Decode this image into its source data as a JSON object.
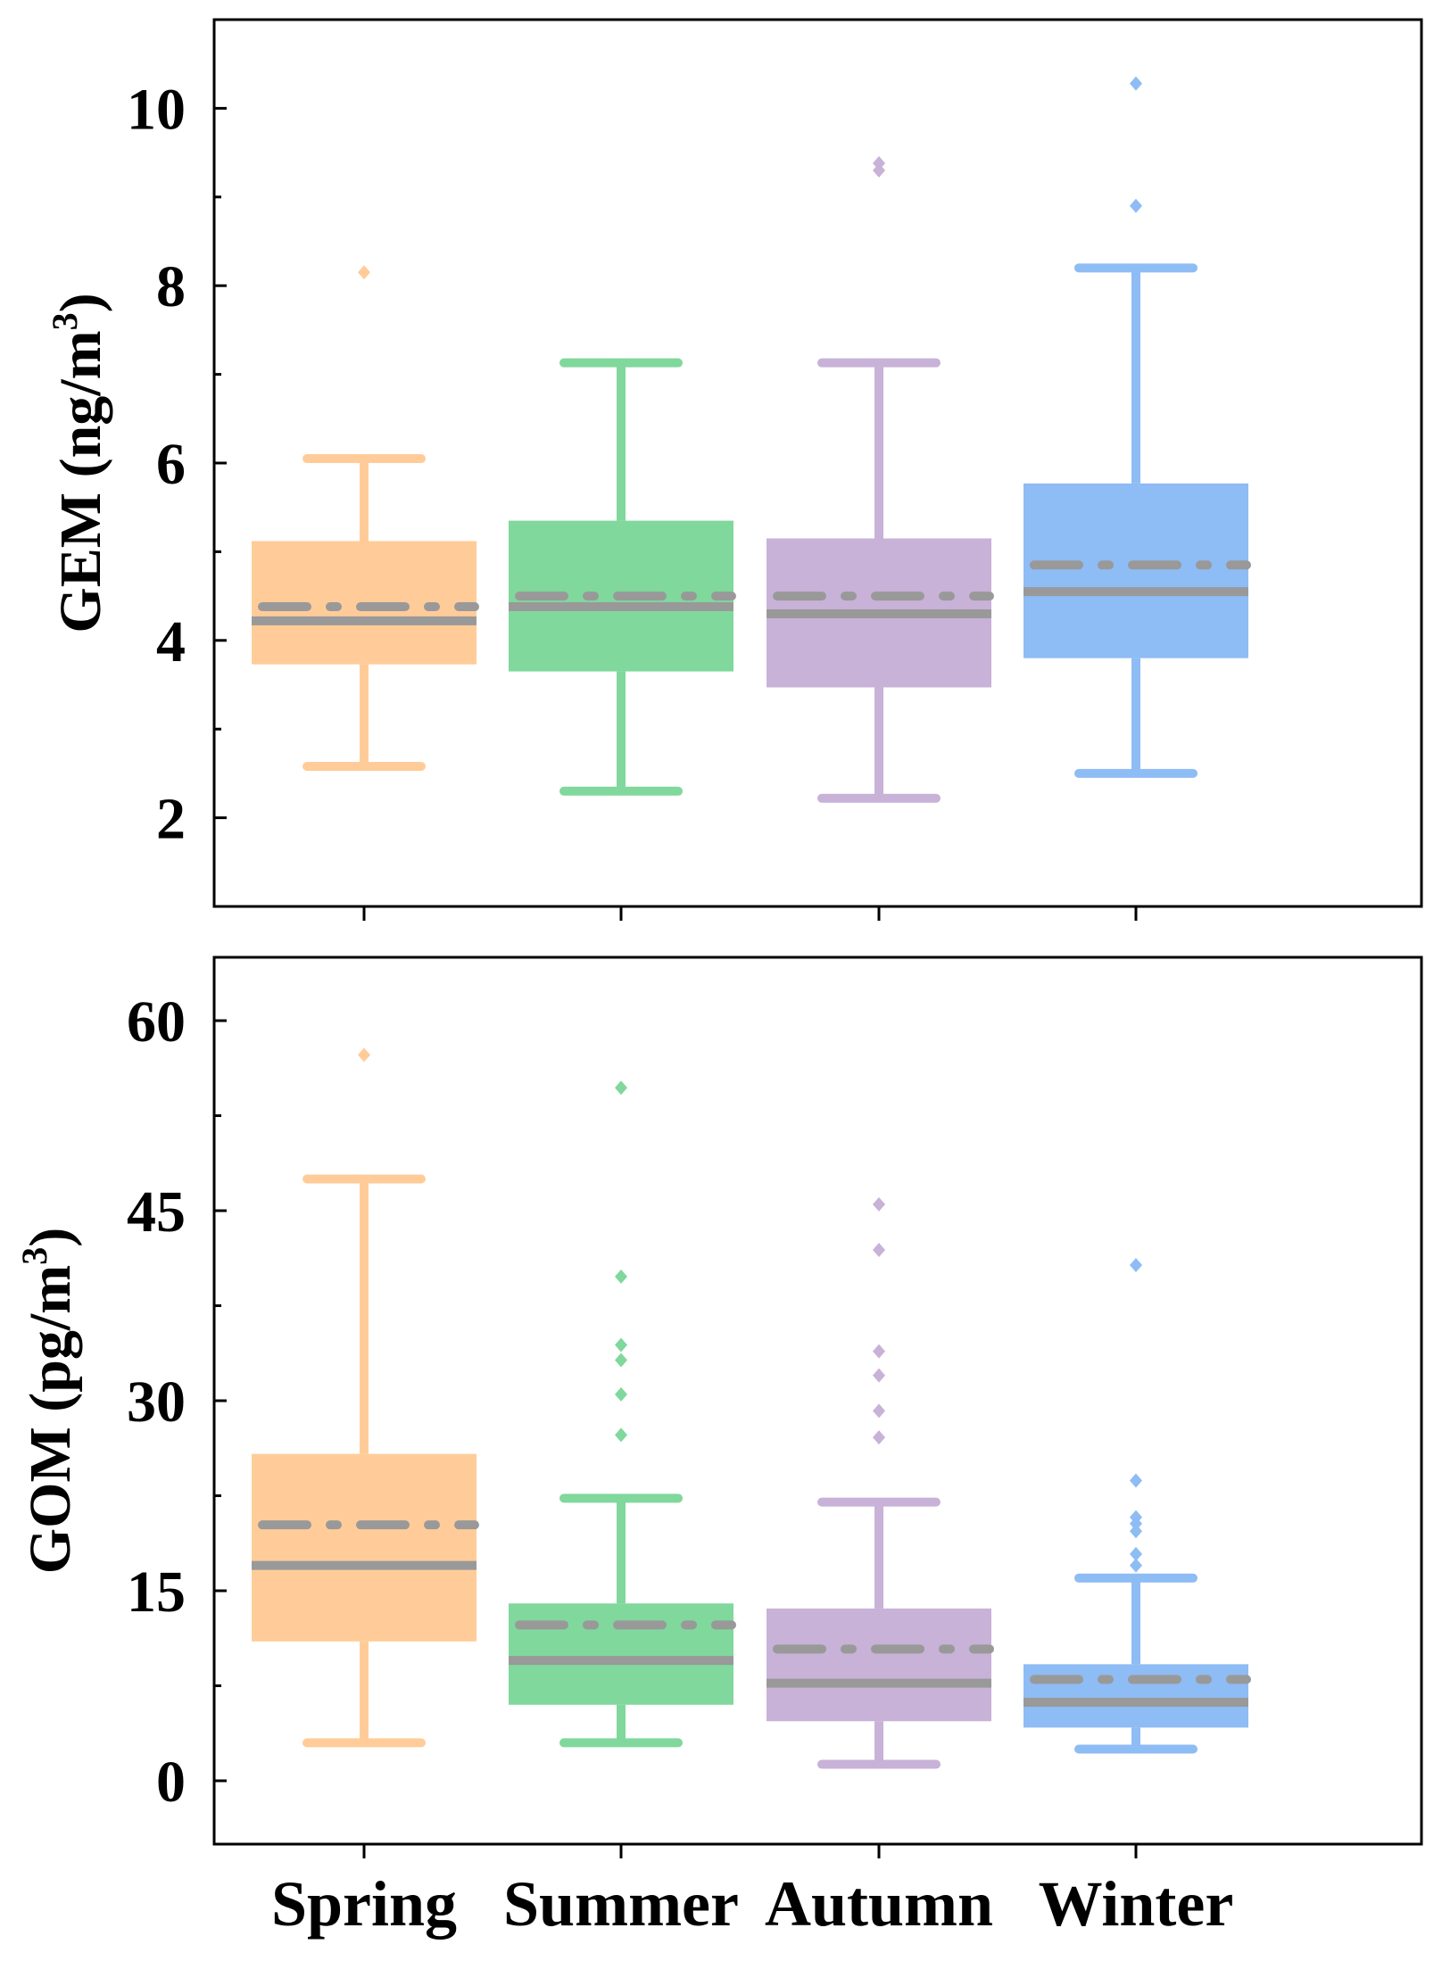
{
  "chart_data": [
    {
      "type": "box",
      "panel": "top",
      "ylabel_main": "GEM (ng/m",
      "ylabel_sup": "3",
      "ylabel_close": ")",
      "ylim": [
        1,
        11
      ],
      "yticks": [
        2,
        4,
        6,
        8,
        10
      ],
      "yticks_minor": [
        3,
        5,
        7,
        9
      ],
      "categories": [
        "Spring",
        "Summer",
        "Autumn",
        "Winter"
      ],
      "series": [
        {
          "name": "Spring",
          "color": "#FFCC99",
          "whisker_low": 2.58,
          "q1": 3.73,
          "median": 4.22,
          "q3": 5.12,
          "whisker_high": 6.05,
          "mean": 4.38,
          "outliers": [
            8.15
          ]
        },
        {
          "name": "Summer",
          "color": "#80D89C",
          "whisker_low": 2.3,
          "q1": 3.65,
          "median": 4.38,
          "q3": 5.35,
          "whisker_high": 7.13,
          "mean": 4.5,
          "outliers": []
        },
        {
          "name": "Autumn",
          "color": "#C8B2D8",
          "whisker_low": 2.22,
          "q1": 3.47,
          "median": 4.3,
          "q3": 5.15,
          "whisker_high": 7.13,
          "mean": 4.5,
          "outliers": [
            9.3,
            9.38
          ]
        },
        {
          "name": "Winter",
          "color": "#8EBCF4",
          "whisker_low": 2.5,
          "q1": 3.8,
          "median": 4.55,
          "q3": 5.77,
          "whisker_high": 8.2,
          "mean": 4.85,
          "outliers": [
            8.9,
            10.28
          ]
        }
      ]
    },
    {
      "type": "box",
      "panel": "bottom",
      "ylabel_main": "GOM (pg/m",
      "ylabel_sup": "3",
      "ylabel_close": ")",
      "ylim": [
        -5,
        65
      ],
      "yticks": [
        0,
        15,
        30,
        45,
        60
      ],
      "yticks_minor": [
        7.5,
        22.5,
        37.5,
        52.5
      ],
      "categories": [
        "Spring",
        "Summer",
        "Autumn",
        "Winter"
      ],
      "series": [
        {
          "name": "Spring",
          "color": "#FFCC99",
          "whisker_low": 3.0,
          "q1": 11.0,
          "median": 17.0,
          "q3": 25.8,
          "whisker_high": 47.5,
          "mean": 20.2,
          "outliers": [
            57.3
          ]
        },
        {
          "name": "Summer",
          "color": "#80D89C",
          "whisker_low": 3.0,
          "q1": 6.0,
          "median": 9.5,
          "q3": 14.0,
          "whisker_high": 22.3,
          "mean": 12.3,
          "outliers": [
            27.3,
            30.5,
            33.2,
            34.4,
            39.8,
            54.7
          ]
        },
        {
          "name": "Autumn",
          "color": "#C8B2D8",
          "whisker_low": 1.3,
          "q1": 4.7,
          "median": 7.7,
          "q3": 13.6,
          "whisker_high": 22.0,
          "mean": 10.4,
          "outliers": [
            27.1,
            29.2,
            32.0,
            33.9,
            41.9,
            45.5
          ]
        },
        {
          "name": "Winter",
          "color": "#8EBCF4",
          "whisker_low": 2.5,
          "q1": 4.2,
          "median": 6.2,
          "q3": 9.2,
          "whisker_high": 16.0,
          "mean": 8.0,
          "outliers": [
            17.0,
            17.9,
            19.7,
            20.3,
            20.8,
            23.7,
            40.7
          ]
        }
      ]
    }
  ],
  "colors": {
    "median_line": "#999999",
    "mean_line": "#999999",
    "axis": "#000000"
  }
}
